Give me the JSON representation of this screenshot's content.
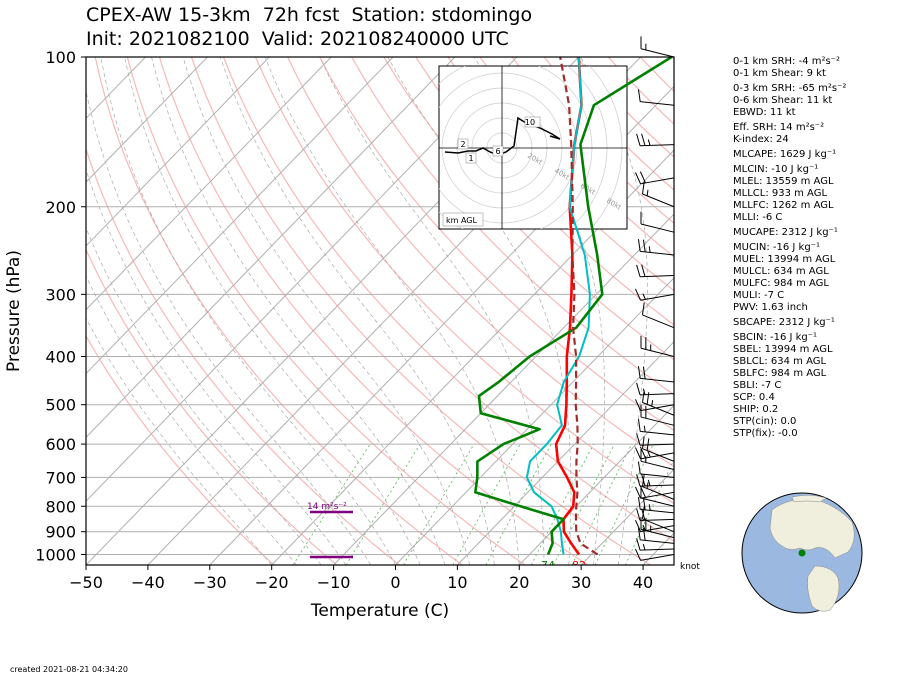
{
  "title": {
    "line1": "CPEX-AW 15-3km  72h fcst  Station: stdomingo",
    "line2": "Init: 2021082100  Valid: 202108240000 UTC"
  },
  "chart_data": {
    "type": "line",
    "subtype": "skew-T log-P sounding",
    "xlabel": "Temperature (C)",
    "ylabel": "Pressure (hPa)",
    "xlim": [
      -50,
      45
    ],
    "ylim": [
      1050,
      100
    ],
    "xticks": [
      -50,
      -40,
      -30,
      -20,
      -10,
      0,
      10,
      20,
      30,
      40
    ],
    "yticks": [
      100,
      200,
      300,
      400,
      500,
      600,
      700,
      800,
      900,
      1000
    ],
    "yscale": "log",
    "grid": true,
    "series": [
      {
        "key": "temperature",
        "color": "#ff0000",
        "p": [
          1000,
          950,
          900,
          850,
          800,
          750,
          700,
          650,
          600,
          550,
          500,
          450,
          400,
          350,
          300,
          250,
          200,
          150,
          125,
          115,
          100
        ],
        "t": [
          28,
          25,
          22,
          20,
          19.5,
          17.5,
          14,
          10,
          7,
          5.5,
          2.5,
          -1,
          -5,
          -9,
          -14,
          -20,
          -28,
          -37,
          -42,
          -45,
          -50
        ]
      },
      {
        "key": "virtual-temperature",
        "color": "#00bfc4",
        "p": [
          1000,
          950,
          900,
          850,
          800,
          750,
          700,
          650,
          600,
          550,
          500,
          450,
          400,
          350,
          300,
          250,
          200,
          150,
          125,
          115,
          100
        ],
        "t": [
          25.5,
          23.5,
          21.5,
          19,
          16,
          11,
          7.5,
          5.5,
          5.5,
          5,
          1,
          -1.5,
          -3,
          -6,
          -11,
          -18,
          -28,
          -37,
          -42,
          -45,
          -50
        ]
      },
      {
        "key": "dewpoint",
        "color": "#008000",
        "p": [
          1000,
          950,
          900,
          850,
          800,
          750,
          700,
          650,
          600,
          560,
          520,
          480,
          450,
          400,
          350,
          300,
          250,
          200,
          150,
          125,
          100
        ],
        "t": [
          23,
          22,
          20,
          20,
          11,
          1.5,
          -0.5,
          -3,
          -1.5,
          2,
          -10,
          -13,
          -12,
          -11,
          -8,
          -9,
          -16,
          -25,
          -36,
          -40,
          -35
        ]
      },
      {
        "key": "parcel",
        "color": "#a52a2a",
        "p": [
          1000,
          950,
          900,
          850,
          800,
          750,
          700,
          650,
          600,
          550,
          500,
          450,
          400,
          350,
          300,
          250,
          200,
          150,
          125,
          100
        ],
        "t": [
          31,
          26.5,
          24,
          22,
          20,
          18,
          15.5,
          13,
          10.5,
          7.5,
          4,
          0.5,
          -3.5,
          -8.5,
          -13.5,
          -20,
          -27.5,
          -37.5,
          -44,
          -53
        ]
      }
    ],
    "surface_labels": {
      "dewpoint": "74",
      "temperature": "82"
    },
    "srh_label": "14 m²s⁻²",
    "wind_unit": "knot",
    "hodograph": {
      "box_label": "km AGL",
      "ring_labels": [
        "20kt",
        "40kt",
        "60kt",
        "80kt"
      ],
      "height_labels": [
        "1",
        "2",
        "6",
        "10"
      ]
    }
  },
  "indices": [
    "0-1 km SRH: -4 m²s⁻²",
    "0-1 km Shear: 9 kt",
    "0-3 km SRH: -65 m²s⁻²",
    "0-6 km Shear: 11 kt",
    "EBWD: 11 kt",
    "Eff. SRH: 14 m²s⁻²",
    "K-index: 24",
    "MLCAPE: 1629 J kg⁻¹",
    "MLCIN: -10 J kg⁻¹",
    "MLEL: 13559 m AGL",
    "MLLCL: 933 m AGL",
    "MLLFC: 1262 m AGL",
    "MLLI: -6 C",
    "MUCAPE: 2312 J kg⁻¹",
    "MUCIN: -16 J kg⁻¹",
    "MUEL: 13994 m AGL",
    "MULCL: 634 m AGL",
    "MULFC: 984 m AGL",
    "MULI: -7 C",
    "PWV: 1.63 inch",
    "SBCAPE: 2312 J kg⁻¹",
    "SBCIN: -16 J kg⁻¹",
    "SBEL: 13994 m AGL",
    "SBLCL: 634 m AGL",
    "SBLFC: 984 m AGL",
    "SBLI: -7 C",
    "SCP: 0.4",
    "SHIP: 0.2",
    "STP(cin): 0.0",
    "STP(fix): -0.0"
  ],
  "created": "created 2021-08-21 04:34:20"
}
